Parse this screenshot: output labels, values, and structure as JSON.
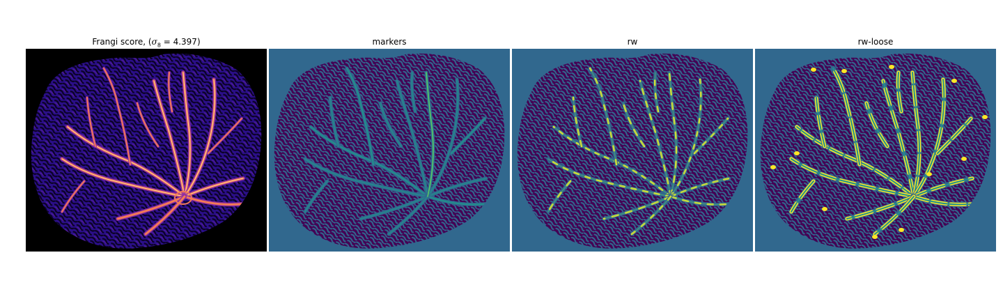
{
  "figure": {
    "panels": [
      {
        "id": "frangi",
        "title_prefix": "Frangi score, (",
        "title_symbol": "σ",
        "title_subscript": "8",
        "title_suffix": " = 4.397)",
        "colormap": "magma"
      },
      {
        "id": "markers",
        "title": "markers",
        "colormap": "viridis"
      },
      {
        "id": "rw",
        "title": "rw",
        "colormap": "viridis"
      },
      {
        "id": "rw-loose",
        "title": "rw-loose",
        "colormap": "viridis"
      }
    ],
    "colors": {
      "magma_background": "#000000",
      "magma_low": "#2b0f8a",
      "magma_mid": "#8c2ba6",
      "magma_high": "#f37a55",
      "magma_peak": "#fde3a0",
      "viridis_background": "#31688e",
      "viridis_tissue": "#440154",
      "viridis_teal": "#21918c",
      "viridis_green": "#5ec962",
      "viridis_yellow": "#fde725"
    }
  }
}
